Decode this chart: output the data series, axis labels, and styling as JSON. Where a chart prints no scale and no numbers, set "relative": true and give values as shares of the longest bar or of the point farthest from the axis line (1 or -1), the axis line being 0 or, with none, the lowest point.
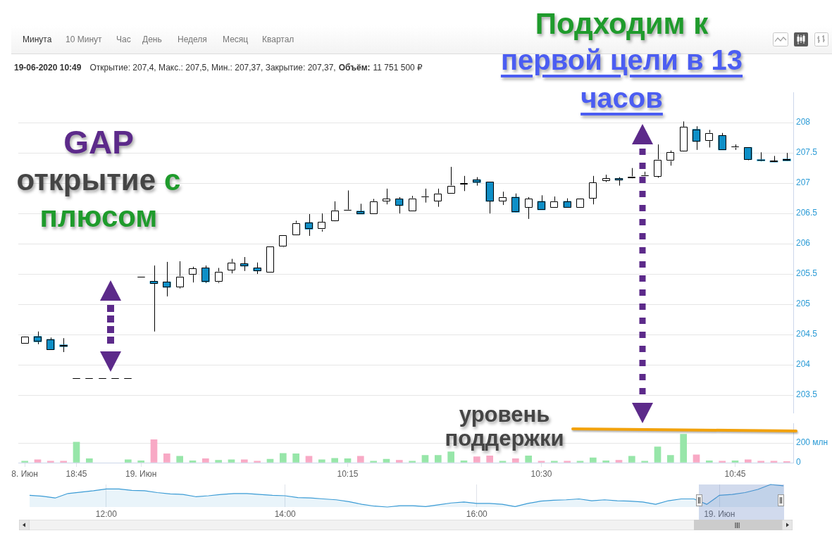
{
  "chart_data": [
    {
      "type": "candlestick",
      "categories": [
        null,
        null,
        null,
        null,
        null,
        null,
        null,
        null,
        null,
        null,
        null,
        null,
        null,
        null,
        null,
        null,
        null,
        null,
        null,
        null,
        null,
        null,
        null,
        null,
        null,
        null,
        null,
        null,
        null,
        null,
        null,
        null,
        null,
        null,
        null,
        null,
        null,
        null,
        null,
        null,
        null,
        null,
        null,
        null,
        null,
        null,
        null,
        null,
        null,
        null,
        null,
        null,
        null,
        null,
        null,
        null,
        null,
        null,
        null,
        null
      ],
      "ohlc": [
        [
          204.35,
          204.47,
          204.35,
          204.47
        ],
        [
          204.47,
          204.55,
          204.34,
          204.38
        ],
        [
          204.42,
          204.45,
          204.25,
          204.25
        ],
        [
          204.33,
          204.44,
          204.21,
          204.3
        ],
        [
          203.77,
          203.77,
          203.77,
          203.77
        ],
        [
          203.77,
          203.77,
          203.77,
          203.77
        ],
        [
          203.77,
          203.77,
          203.77,
          203.77
        ],
        [
          203.77,
          203.77,
          203.77,
          203.77
        ],
        [
          203.77,
          203.77,
          203.77,
          203.77
        ],
        [
          205.44,
          205.44,
          205.44,
          205.44
        ],
        [
          205.38,
          205.64,
          204.55,
          205.34
        ],
        [
          205.37,
          205.7,
          205.13,
          205.28
        ],
        [
          205.28,
          205.71,
          205.26,
          205.46
        ],
        [
          205.49,
          205.62,
          205.36,
          205.59
        ],
        [
          205.6,
          205.64,
          205.35,
          205.37
        ],
        [
          205.37,
          205.6,
          205.35,
          205.54
        ],
        [
          205.56,
          205.75,
          205.51,
          205.69
        ],
        [
          205.67,
          205.78,
          205.55,
          205.63
        ],
        [
          205.6,
          205.69,
          205.5,
          205.55
        ],
        [
          205.53,
          205.95,
          205.53,
          205.95
        ],
        [
          205.95,
          206.14,
          205.94,
          206.14
        ],
        [
          206.14,
          206.38,
          206.14,
          206.34
        ],
        [
          206.35,
          206.49,
          206.13,
          206.24
        ],
        [
          206.24,
          206.5,
          206.2,
          206.36
        ],
        [
          206.37,
          206.7,
          206.37,
          206.55
        ],
        [
          206.55,
          206.88,
          206.55,
          206.55
        ],
        [
          206.54,
          206.66,
          206.49,
          206.49
        ],
        [
          206.49,
          206.74,
          206.49,
          206.7
        ],
        [
          206.7,
          206.91,
          206.65,
          206.74
        ],
        [
          206.74,
          206.77,
          206.5,
          206.63
        ],
        [
          206.54,
          206.79,
          206.54,
          206.75
        ],
        [
          206.77,
          206.91,
          206.68,
          206.77
        ],
        [
          206.7,
          206.91,
          206.61,
          206.83
        ],
        [
          206.83,
          207.27,
          206.83,
          206.96
        ],
        [
          206.98,
          207.12,
          206.87,
          207
        ],
        [
          207.06,
          207.1,
          206.96,
          207.01
        ],
        [
          207.02,
          207.02,
          206.5,
          206.7
        ],
        [
          206.7,
          206.86,
          206.64,
          206.77
        ],
        [
          206.77,
          206.83,
          206.52,
          206.52
        ],
        [
          206.6,
          206.77,
          206.41,
          206.74
        ],
        [
          206.7,
          206.8,
          206.56,
          206.56
        ],
        [
          206.6,
          206.78,
          206.6,
          206.7
        ],
        [
          206.7,
          206.75,
          206.6,
          206.6
        ],
        [
          206.6,
          206.75,
          206.6,
          206.75
        ],
        [
          206.75,
          207.12,
          206.65,
          207.01
        ],
        [
          207.04,
          207.14,
          207.02,
          207.08
        ],
        [
          207.08,
          207.1,
          206.96,
          207.05
        ],
        [
          207.08,
          207.25,
          207.08,
          207.11
        ],
        [
          207.12,
          207.19,
          207.12,
          207.12
        ],
        [
          207.11,
          207.64,
          207.09,
          207.39
        ],
        [
          207.37,
          207.54,
          207.29,
          207.51
        ],
        [
          207.52,
          208.02,
          207.52,
          207.93
        ],
        [
          207.89,
          207.94,
          207.55,
          207.69
        ],
        [
          207.7,
          207.88,
          207.59,
          207.83
        ],
        [
          207.79,
          207.83,
          207.55,
          207.55
        ],
        [
          207.59,
          207.64,
          207.55,
          207.59
        ],
        [
          207.59,
          207.59,
          207.38,
          207.39
        ],
        [
          207.39,
          207.51,
          207.36,
          207.37
        ],
        [
          207.37,
          207.45,
          207.35,
          207.35
        ],
        [
          207.4,
          207.5,
          207.37,
          207.37
        ]
      ],
      "colors": [
        "#ffffff",
        "#0e8fc7",
        "#0e8fc7",
        "#0e8fc7",
        "#ffffff",
        "#ffffff",
        "#ffffff",
        "#ffffff",
        "#ffffff",
        "#ffffff",
        "#0e8fc7",
        "#0e8fc7",
        "#ffffff",
        "#ffffff",
        "#0e8fc7",
        "#ffffff",
        "#ffffff",
        "#0e8fc7",
        "#0e8fc7",
        "#ffffff",
        "#ffffff",
        "#ffffff",
        "#0e8fc7",
        "#ffffff",
        "#ffffff",
        "#ffffff",
        "#0e8fc7",
        "#ffffff",
        "#ffffff",
        "#0e8fc7",
        "#ffffff",
        "#ffffff",
        "#ffffff",
        "#ffffff",
        "#ffffff",
        "#0e8fc7",
        "#0e8fc7",
        "#ffffff",
        "#0e8fc7",
        "#ffffff",
        "#0e8fc7",
        "#ffffff",
        "#0e8fc7",
        "#ffffff",
        "#ffffff",
        "#ffffff",
        "#0e8fc7",
        "#ffffff",
        "#ffffff",
        "#ffffff",
        "#ffffff",
        "#ffffff",
        "#0e8fc7",
        "#ffffff",
        "#0e8fc7",
        "#ffffff",
        "#0e8fc7",
        "#0e8fc7",
        "#0e8fc7",
        "#0e8fc7"
      ],
      "ylim": [
        203.2,
        208.5
      ],
      "yticks": [
        203.5,
        204,
        204.5,
        205,
        205.5,
        206,
        206.5,
        207,
        207.5,
        208
      ],
      "grid": "y",
      "tick_labels": "y",
      "annotations": [
        "Минута",
        "10 Минут",
        "Час",
        "День",
        "Неделя",
        "Месяц",
        "Квартал",
        "19-06-2020 10:49",
        "Открытие: 207,4, Макс.: 207,5, Мин.: 207,37, Закрытие: 207,37,",
        "Объём:",
        "11 751 500 ₽",
        "GAP",
        "открытие",
        "с",
        "плюсом",
        "Подходим к",
        "первой цели в 13 часов",
        "уровень поддержки"
      ]
    },
    {
      "type": "bar",
      "categories": [
        "8. Июн",
        null,
        null,
        null,
        "18:45",
        null,
        null,
        null,
        null,
        "19. Июн",
        null,
        null,
        null,
        null,
        null,
        null,
        null,
        null,
        null,
        null,
        null,
        null,
        null,
        null,
        null,
        "10:15",
        null,
        null,
        null,
        null,
        null,
        null,
        null,
        null,
        null,
        null,
        null,
        null,
        null,
        null,
        "10:30",
        null,
        null,
        null,
        null,
        null,
        null,
        null,
        null,
        null,
        null,
        null,
        null,
        null,
        null,
        "10:45",
        null,
        null,
        null,
        null
      ],
      "values": [
        15,
        30,
        15,
        15,
        210,
        40,
        null,
        null,
        30,
        20,
        235,
        90,
        65,
        20,
        40,
        25,
        30,
        30,
        15,
        35,
        95,
        90,
        65,
        30,
        45,
        40,
        65,
        15,
        35,
        25,
        15,
        75,
        75,
        110,
        20,
        60,
        70,
        15,
        40,
        70,
        15,
        15,
        15,
        15,
        50,
        20,
        25,
        65,
        15,
        160,
        75,
        290,
        80,
        20,
        15,
        20,
        30,
        15,
        15,
        12
      ],
      "colors": [
        "#97e6a9",
        "#f8a9c5",
        "#f8a9c5",
        "#f8a9c5",
        "#97e6a9",
        "#97e6a9",
        "#97e6a9",
        "#97e6a9",
        "#97e6a9",
        "#97e6a9",
        "#f8a9c5",
        "#f8a9c5",
        "#97e6a9",
        "#97e6a9",
        "#f8a9c5",
        "#97e6a9",
        "#97e6a9",
        "#f8a9c5",
        "#f8a9c5",
        "#97e6a9",
        "#97e6a9",
        "#97e6a9",
        "#f8a9c5",
        "#97e6a9",
        "#97e6a9",
        "#97e6a9",
        "#f8a9c5",
        "#97e6a9",
        "#97e6a9",
        "#f8a9c5",
        "#97e6a9",
        "#97e6a9",
        "#97e6a9",
        "#97e6a9",
        "#97e6a9",
        "#f8a9c5",
        "#f8a9c5",
        "#97e6a9",
        "#f8a9c5",
        "#97e6a9",
        "#f8a9c5",
        "#97e6a9",
        "#f8a9c5",
        "#97e6a9",
        "#97e6a9",
        "#97e6a9",
        "#f8a9c5",
        "#97e6a9",
        "#97e6a9",
        "#97e6a9",
        "#97e6a9",
        "#97e6a9",
        "#f8a9c5",
        "#97e6a9",
        "#f8a9c5",
        "#97e6a9",
        "#f8a9c5",
        "#f8a9c5",
        "#f8a9c5",
        "#f8a9c5"
      ],
      "ylim": [
        0,
        400
      ],
      "yticks": [
        0,
        {
          "value": 200,
          "label": "200 млн"
        }
      ],
      "grid": "y"
    },
    {
      "type": "area",
      "relative": true,
      "color": "#3a9bd5",
      "grid": "x",
      "categories": [
        null,
        null,
        null,
        null,
        null,
        null,
        "12:00",
        null,
        null,
        null,
        null,
        null,
        null,
        null,
        null,
        null,
        null,
        null,
        null,
        null,
        "14:00",
        null,
        null,
        null,
        null,
        null,
        null,
        null,
        null,
        null,
        null,
        null,
        null,
        null,
        null,
        "16:00",
        null,
        null,
        null,
        null,
        null,
        null,
        null,
        null,
        null,
        null,
        null,
        null,
        null,
        null,
        null,
        null,
        null,
        null,
        "19. Июн",
        null,
        null,
        null,
        null,
        null
      ],
      "values": [
        0.52,
        0.48,
        0.4,
        0.6,
        0.66,
        0.72,
        0.8,
        0.8,
        0.74,
        0.72,
        0.64,
        0.58,
        0.56,
        0.46,
        0.5,
        0.56,
        0.6,
        0.6,
        0.56,
        0.52,
        0.5,
        0.42,
        0.4,
        0.36,
        0.32,
        0.24,
        0.12,
        0.04,
        0,
        0.06,
        0.06,
        0.02,
        0.1,
        0.18,
        0.22,
        0.16,
        0.16,
        0.12,
        0.02,
        0.16,
        0.26,
        0.3,
        0.32,
        0.36,
        0.28,
        0.32,
        0.28,
        0.26,
        0.22,
        0.12,
        0.28,
        0.36,
        0.36,
        0.12,
        0.52,
        0.56,
        0.64,
        0.78,
        1,
        0.94
      ]
    }
  ]
}
